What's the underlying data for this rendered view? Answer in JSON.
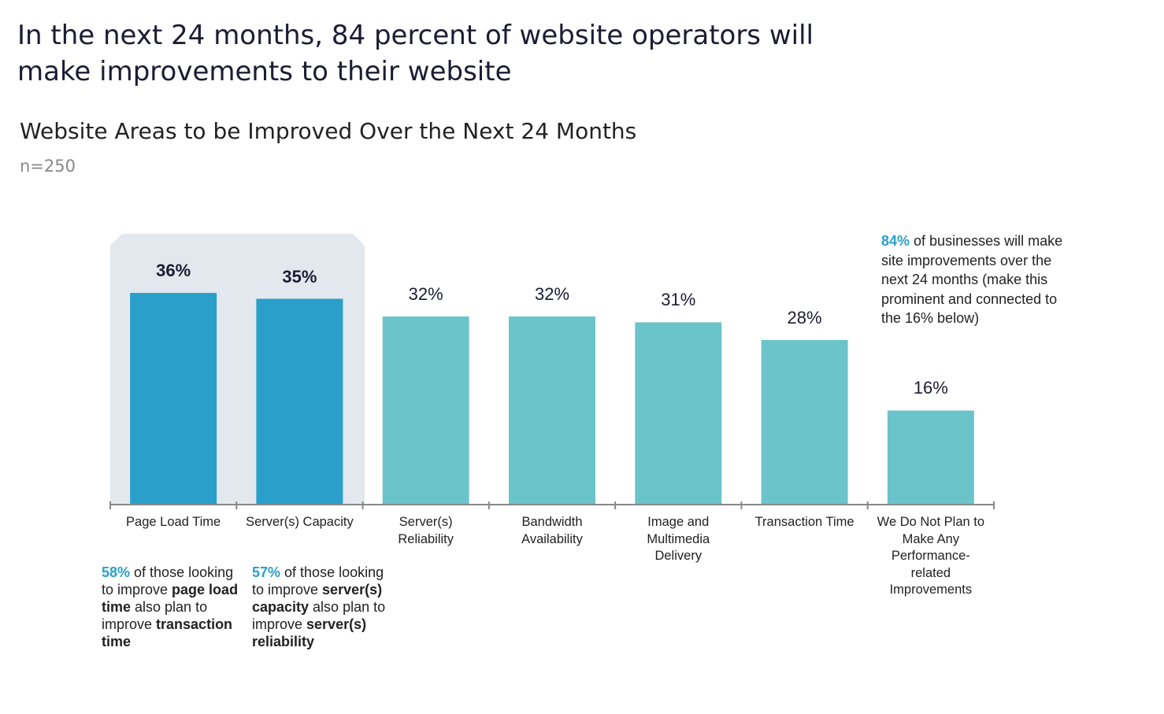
{
  "header": {
    "title": "In the next 24 months, 84 percent of website operators will make improvements to their website"
  },
  "chart_data": {
    "type": "bar",
    "title": "Website Areas to be Improved Over the Next 24 Months",
    "subtitle": "n=250",
    "categories": [
      "Page Load Time",
      "Server(s) Capacity",
      "Server(s) Reliability",
      "Bandwidth Availability",
      "Image and Multimedia Delivery",
      "Transaction Time",
      "We Do Not Plan to Make Any Performance-related Improvements"
    ],
    "values": [
      36,
      35,
      32,
      32,
      31,
      28,
      16
    ],
    "value_labels": [
      "36%",
      "35%",
      "32%",
      "32%",
      "31%",
      "28%",
      "16%"
    ],
    "colors": [
      "#2a9fca",
      "#2a9fca",
      "#6cc4cb",
      "#6cc4cb",
      "#6cc4cb",
      "#6cc4cb",
      "#6cc4cb"
    ],
    "annotations": [
      [
        "58%",
        " of those looking to improve ",
        "page load time",
        " also plan to improve ",
        "transaction time"
      ],
      [
        "57%",
        " of those looking to improve ",
        "server(s) capacity",
        " also plan to improve ",
        "server(s) reliability"
      ],
      [
        "84%",
        " of businesses will make site improvements over the next 24 months (make this prominent and connected to the 16% below)"
      ]
    ]
  }
}
